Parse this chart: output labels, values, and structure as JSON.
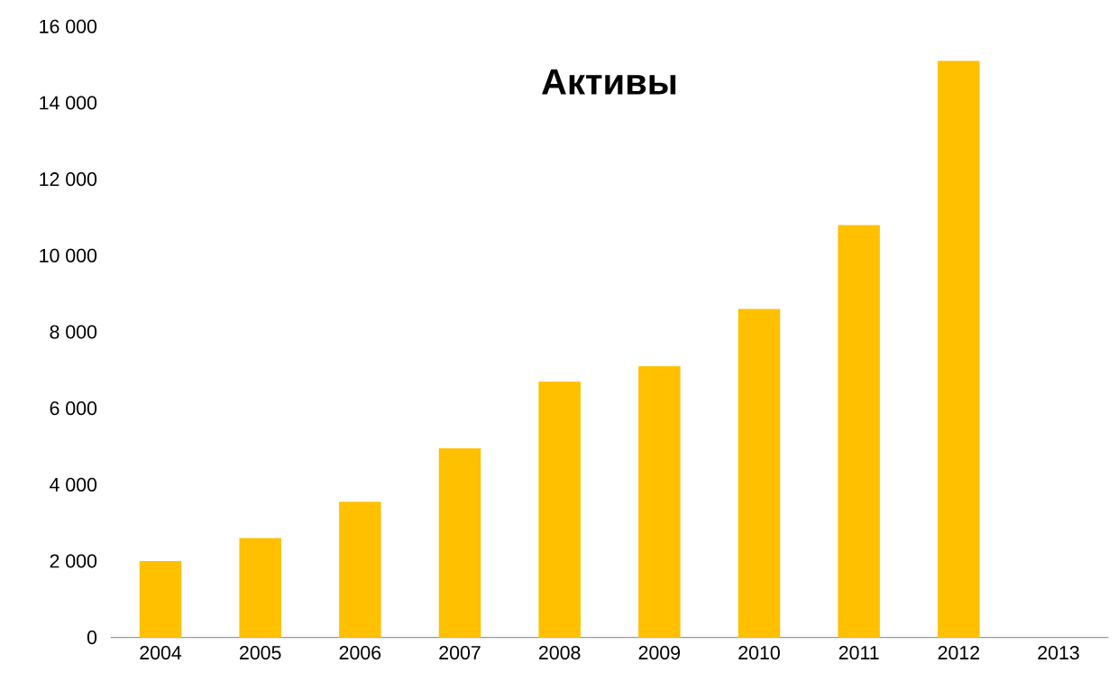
{
  "chart_data": {
    "type": "bar",
    "title": "Активы",
    "categories": [
      "2004",
      "2005",
      "2006",
      "2007",
      "2008",
      "2009",
      "2010",
      "2011",
      "2012",
      "2013"
    ],
    "values": [
      2000,
      2600,
      3550,
      4950,
      6700,
      7100,
      8600,
      10800,
      15100,
      null
    ],
    "color": "#ffc000",
    "ylim": [
      0,
      16000
    ],
    "yticks": [
      0,
      {
        "value": 2000,
        "label": "2 000"
      },
      {
        "value": 4000,
        "label": "4 000"
      },
      {
        "value": 6000,
        "label": "6 000"
      },
      {
        "value": 8000,
        "label": "8 000"
      },
      {
        "value": 10000,
        "label": "10 000"
      },
      {
        "value": 12000,
        "label": "12 000"
      },
      {
        "value": 14000,
        "label": "14 000"
      },
      {
        "value": 16000,
        "label": "16 000"
      }
    ],
    "grid": false
  }
}
